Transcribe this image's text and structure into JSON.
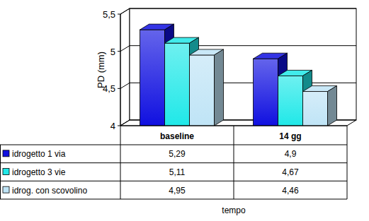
{
  "chart_data": {
    "type": "bar",
    "categories": [
      "baseline",
      "14 gg"
    ],
    "series": [
      {
        "name": "idrogetto 1 via",
        "color": "#1010e0",
        "values": [
          5.29,
          4.9
        ],
        "value_labels": [
          "5,29",
          "4,9"
        ]
      },
      {
        "name": "idrogetto 3 vie",
        "color": "#20e8e8",
        "values": [
          5.11,
          4.67
        ],
        "value_labels": [
          "5,11",
          "4,67"
        ]
      },
      {
        "name": "idrog. con scovolino",
        "color": "#bfe4f6",
        "values": [
          4.95,
          4.46
        ],
        "value_labels": [
          "4,95",
          "4,46"
        ]
      }
    ],
    "y_label": "PD (mm)",
    "x_label": "tempo",
    "ylim": [
      4,
      5.5
    ],
    "yticks": [
      4,
      {
        "value": 4.5,
        "label": "4,5"
      },
      5,
      {
        "value": 5.5,
        "label": "5,5"
      }
    ],
    "grid": true
  }
}
